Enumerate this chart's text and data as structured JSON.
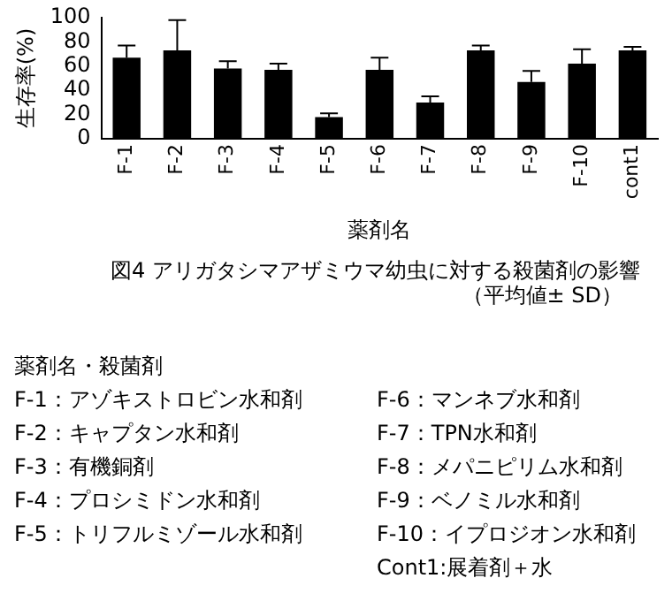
{
  "chart_data": {
    "type": "bar",
    "title": "図4 アリガタシマアザミウマ幼虫に対する殺菌剤の影響",
    "subtitle": "（平均値± SD）",
    "xlabel": "薬剤名",
    "ylabel": "生存率(%)",
    "categories": [
      "F-1",
      "F-2",
      "F-3",
      "F-4",
      "F-5",
      "F-6",
      "F-7",
      "F-8",
      "F-9",
      "F-10",
      "cont1"
    ],
    "values": [
      67,
      73,
      58,
      57,
      18,
      57,
      30,
      73,
      47,
      62,
      73
    ],
    "errors": [
      [
        67,
        77
      ],
      [
        73,
        98
      ],
      [
        58,
        64
      ],
      [
        57,
        62
      ],
      [
        18,
        21
      ],
      [
        57,
        67
      ],
      [
        30,
        35
      ],
      [
        73,
        77
      ],
      [
        47,
        56
      ],
      [
        62,
        74
      ],
      [
        73,
        76
      ]
    ],
    "color": "#000000",
    "ylim": [
      0,
      100
    ],
    "yticks": [
      0,
      20,
      40,
      60,
      80,
      100
    ],
    "grid": false,
    "legend": false,
    "annotations": [
      "薬剤名・殺菌剤",
      "F-1：アゾキストロビン水和剤",
      "F-2：キャプタン水和剤",
      "F-3：有機銅剤",
      "F-4：プロシミドン水和剤",
      "F-5：トリフルミゾール水和剤",
      "F-6：マンネブ水和剤",
      "F-7：TPN水和剤",
      "F-8：メパニピリム水和剤",
      "F-9：ベノミル水和剤",
      "F-10：イプロジオン水和剤",
      "Cont1:展着剤＋水"
    ]
  }
}
